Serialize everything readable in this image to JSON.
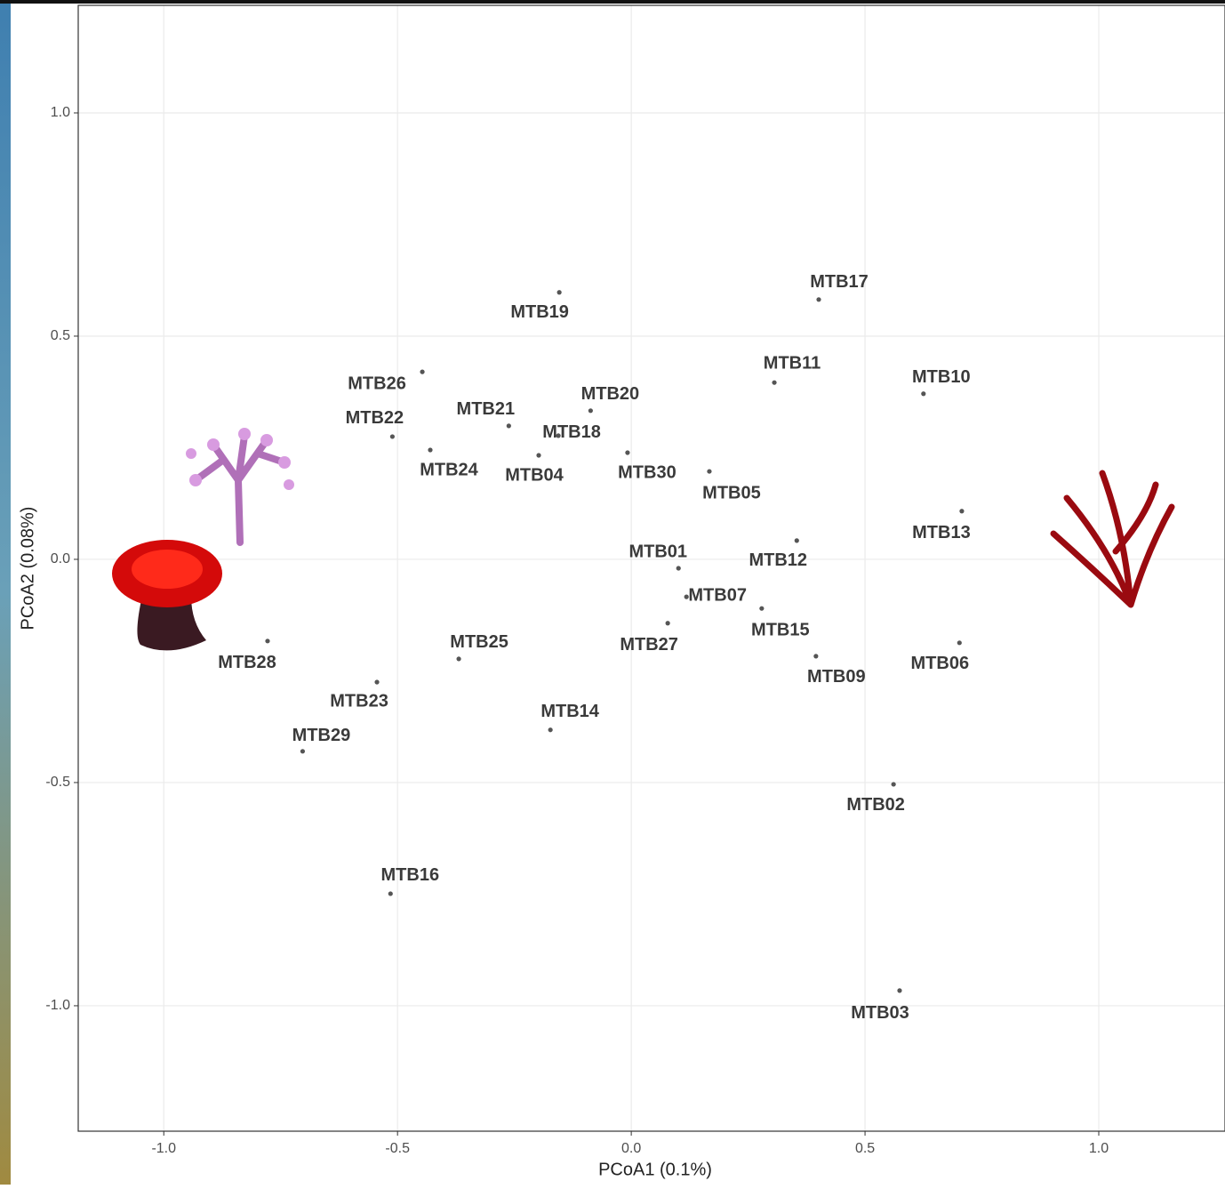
{
  "chart_data": {
    "type": "scatter",
    "x_label": "PCoA1 (0.1%)",
    "y_label": "PCoA2 (0.08%)",
    "labels": [
      "MTB19",
      "MTB17",
      "MTB26",
      "MTB11",
      "MTB10",
      "MTB20",
      "MTB22",
      "MTB21",
      "MTB18",
      "MTB24",
      "MTB04",
      "MTB30",
      "MTB05",
      "MTB13",
      "MTB12",
      "MTB01",
      "MTB07",
      "MTB15",
      "MTB27",
      "MTB28",
      "MTB06",
      "MTB25",
      "MTB09",
      "MTB23",
      "MTB14",
      "MTB29",
      "MTB02",
      "MTB16",
      "MTB03"
    ],
    "x": [
      -0.154,
      0.401,
      -0.447,
      0.306,
      0.625,
      -0.087,
      -0.511,
      -0.262,
      -0.156,
      -0.43,
      -0.198,
      -0.008,
      0.167,
      0.707,
      0.354,
      0.101,
      0.118,
      0.279,
      0.078,
      -0.778,
      0.702,
      -0.369,
      0.395,
      -0.544,
      -0.173,
      -0.703,
      0.561,
      -0.515,
      0.574
    ],
    "values": [
      0.598,
      0.582,
      0.42,
      0.396,
      0.371,
      0.333,
      0.275,
      0.299,
      0.277,
      0.245,
      0.233,
      0.239,
      0.197,
      0.108,
      0.042,
      -0.02,
      -0.084,
      -0.11,
      -0.143,
      -0.183,
      -0.187,
      -0.223,
      -0.217,
      -0.275,
      -0.382,
      -0.43,
      -0.504,
      -0.749,
      -0.966
    ],
    "color": "#555555",
    "xlim": [
      -1.183,
      1.27
    ],
    "ylim": [
      -1.281,
      1.241
    ],
    "xticks": [
      {
        "value": -1,
        "label": "-1.0"
      },
      -0.5,
      {
        "value": 0,
        "label": "0.0"
      },
      0.5,
      {
        "value": 1,
        "label": "1.0"
      }
    ],
    "yticks": [
      {
        "value": -1,
        "label": "-1.0"
      },
      -0.5,
      {
        "value": 0,
        "label": "0.0"
      },
      0.5,
      {
        "value": 1,
        "label": "1.0"
      }
    ],
    "grid": true
  }
}
